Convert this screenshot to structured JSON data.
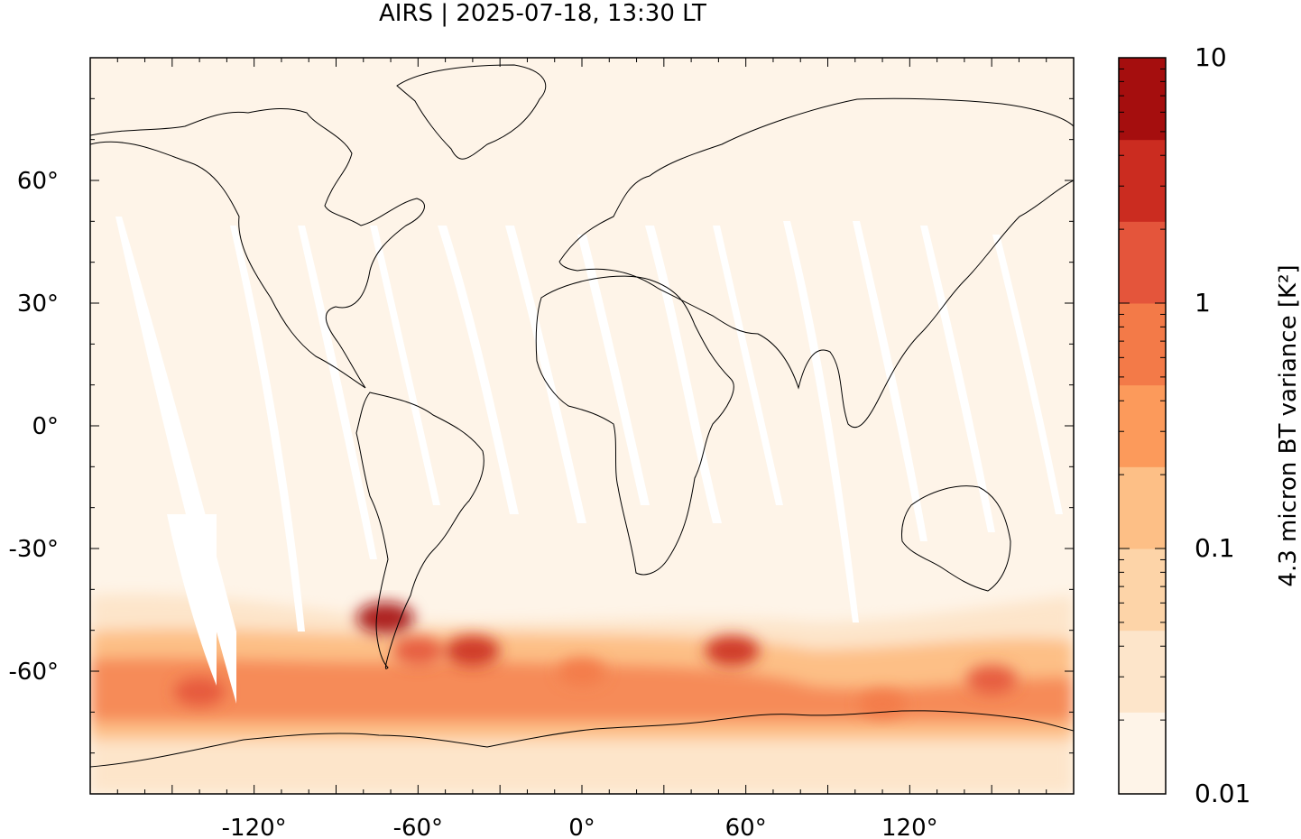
{
  "title": "AIRS | 2025-07-18, 13:30 LT",
  "map": {
    "projection": "equirectangular",
    "lon_range": [
      -180,
      180
    ],
    "lat_range": [
      -90,
      90
    ],
    "lat_ticks": [
      {
        "value": 60,
        "label": "60°"
      },
      {
        "value": 30,
        "label": "30°"
      },
      {
        "value": 0,
        "label": "0°"
      },
      {
        "value": -30,
        "label": "-30°"
      },
      {
        "value": -60,
        "label": "-60°"
      }
    ],
    "lon_ticks": [
      {
        "value": -120,
        "label": "-120°"
      },
      {
        "value": -60,
        "label": "-60°"
      },
      {
        "value": 0,
        "label": "0°"
      },
      {
        "value": 60,
        "label": "60°"
      },
      {
        "value": 120,
        "label": "120°"
      }
    ],
    "background_color": "#fef4e8",
    "coastline_color": "#000000",
    "gap_color": "#ffffff"
  },
  "colorbar": {
    "label": "4.3 micron BT variance [K²]",
    "scale": "log",
    "range": [
      0.01,
      10
    ],
    "tick_labels": [
      {
        "value": 10,
        "label": "10"
      },
      {
        "value": 1,
        "label": "1"
      },
      {
        "value": 0.1,
        "label": "0.1"
      },
      {
        "value": 0.01,
        "label": "0.01"
      }
    ],
    "colors": [
      "#fef4e8",
      "#fde5ca",
      "#fdd4a8",
      "#fdbf86",
      "#fc9a5b",
      "#f37a48",
      "#e4553b",
      "#cb2c20",
      "#a50e0e"
    ]
  },
  "hotspots": [
    {
      "lon": -72,
      "lat": -47,
      "level": 8
    },
    {
      "lon": -60,
      "lat": -55,
      "level": 6
    },
    {
      "lon": -40,
      "lat": -55,
      "level": 7
    },
    {
      "lon": 55,
      "lat": -55,
      "level": 7
    },
    {
      "lon": -140,
      "lat": -65,
      "level": 6
    },
    {
      "lon": 150,
      "lat": -62,
      "level": 6
    },
    {
      "lon": 110,
      "lat": -68,
      "level": 5
    },
    {
      "lon": 0,
      "lat": -60,
      "level": 5
    }
  ]
}
